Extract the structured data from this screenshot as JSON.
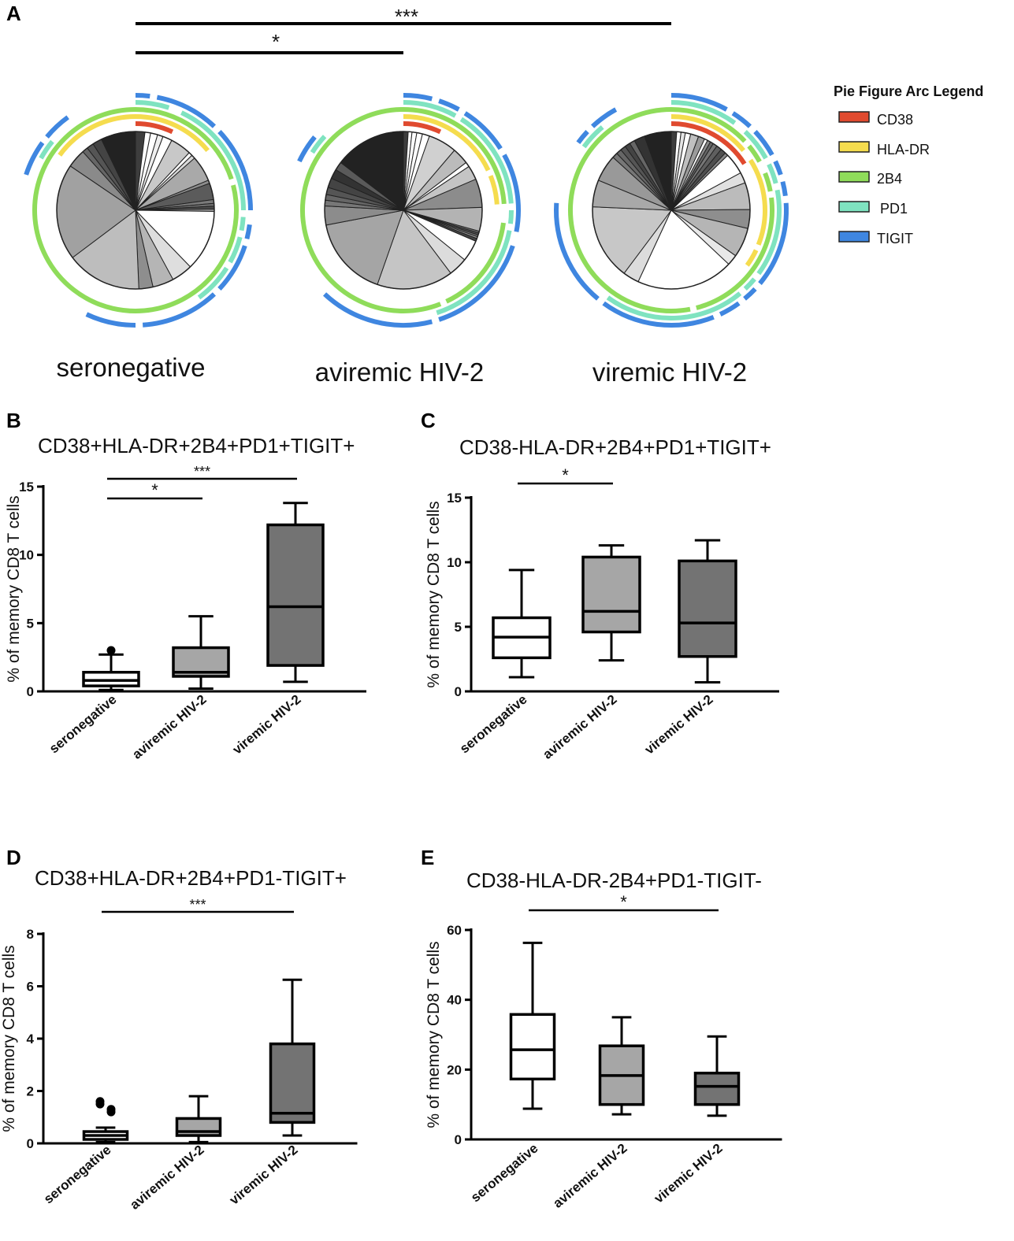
{
  "panel_a": {
    "label": "A",
    "groups": [
      "seronegative",
      "aviremic HIV-2",
      "viremic HIV-2"
    ],
    "significance": [
      {
        "from": 0,
        "to": 2,
        "text": "***"
      },
      {
        "from": 0,
        "to": 1,
        "text": "*"
      }
    ],
    "legend": {
      "title": "Pie Figure Arc Legend",
      "items": [
        {
          "label": "CD38",
          "color": "#e04a2f"
        },
        {
          "label": "HLA-DR",
          "color": "#f5dc4e"
        },
        {
          "label": "2B4",
          "color": "#8fdc5a"
        },
        {
          "label": "PD1",
          "color": "#7fe3c0"
        },
        {
          "label": "TIGIT",
          "color": "#3f86e0"
        }
      ]
    }
  },
  "chart_data": [
    {
      "type": "box",
      "panel": "B",
      "title": "CD38+HLA-DR+2B4+PD1+TIGIT+",
      "ylabel": "% of memory CD8 T cells",
      "ylim": [
        0,
        15
      ],
      "yticks": [
        0,
        5,
        10,
        15
      ],
      "categories": [
        "seronegative",
        "aviremic HIV-2",
        "viremic HIV-2"
      ],
      "boxes": [
        {
          "min": 0.1,
          "q1": 0.4,
          "median": 0.8,
          "q3": 1.4,
          "max": 2.7,
          "fill": "#ffffff",
          "outliers": [
            3.0
          ]
        },
        {
          "min": 0.2,
          "q1": 1.1,
          "median": 1.4,
          "q3": 3.2,
          "max": 5.5,
          "fill": "#a6a6a6",
          "outliers": []
        },
        {
          "min": 0.7,
          "q1": 1.9,
          "median": 6.2,
          "q3": 12.2,
          "max": 13.8,
          "fill": "#737373",
          "outliers": []
        }
      ],
      "significance": [
        {
          "from": 0,
          "to": 1,
          "text": "*"
        },
        {
          "from": 0,
          "to": 2,
          "text": "***"
        }
      ]
    },
    {
      "type": "box",
      "panel": "C",
      "title": "CD38-HLA-DR+2B4+PD1+TIGIT+",
      "ylabel": "% of memory CD8 T cells",
      "ylim": [
        0,
        15
      ],
      "yticks": [
        0,
        5,
        10,
        15
      ],
      "categories": [
        "seronegative",
        "aviremic HIV-2",
        "viremic HIV-2"
      ],
      "boxes": [
        {
          "min": 1.1,
          "q1": 2.6,
          "median": 4.2,
          "q3": 5.7,
          "max": 9.4,
          "fill": "#ffffff",
          "outliers": []
        },
        {
          "min": 2.4,
          "q1": 4.6,
          "median": 6.2,
          "q3": 10.4,
          "max": 11.3,
          "fill": "#a6a6a6",
          "outliers": []
        },
        {
          "min": 0.7,
          "q1": 2.7,
          "median": 5.3,
          "q3": 10.1,
          "max": 11.7,
          "fill": "#737373",
          "outliers": []
        }
      ],
      "significance": [
        {
          "from": 0,
          "to": 1,
          "text": "*"
        }
      ]
    },
    {
      "type": "box",
      "panel": "D",
      "title": "CD38+HLA-DR+2B4+PD1-TIGIT+",
      "ylabel": "% of memory CD8 T cells",
      "ylim": [
        0,
        8
      ],
      "yticks": [
        0,
        2,
        4,
        6,
        8
      ],
      "categories": [
        "seronegative",
        "aviremic HIV-2",
        "viremic HIV-2"
      ],
      "boxes": [
        {
          "min": 0.05,
          "q1": 0.15,
          "median": 0.3,
          "q3": 0.45,
          "max": 0.6,
          "fill": "#ffffff",
          "outliers": [
            1.5,
            1.2,
            1.6,
            1.3
          ]
        },
        {
          "min": 0.05,
          "q1": 0.3,
          "median": 0.45,
          "q3": 0.95,
          "max": 1.8,
          "fill": "#a6a6a6",
          "outliers": []
        },
        {
          "min": 0.3,
          "q1": 0.8,
          "median": 1.15,
          "q3": 3.8,
          "max": 6.25,
          "fill": "#737373",
          "outliers": []
        }
      ],
      "significance": [
        {
          "from": 0,
          "to": 2,
          "text": "***"
        }
      ]
    },
    {
      "type": "box",
      "panel": "E",
      "title": "CD38-HLA-DR-2B4+PD1-TIGIT-",
      "ylabel": "% of memory CD8 T cells",
      "ylim": [
        0,
        60
      ],
      "yticks": [
        0,
        20,
        40,
        60
      ],
      "categories": [
        "seronegative",
        "aviremic HIV-2",
        "viremic HIV-2"
      ],
      "boxes": [
        {
          "min": 8.8,
          "q1": 17.3,
          "median": 25.7,
          "q3": 35.8,
          "max": 56.3,
          "fill": "#ffffff",
          "outliers": []
        },
        {
          "min": 7.2,
          "q1": 10.0,
          "median": 18.3,
          "q3": 26.8,
          "max": 35.0,
          "fill": "#a6a6a6",
          "outliers": []
        },
        {
          "min": 6.8,
          "q1": 10.0,
          "median": 15.2,
          "q3": 19.0,
          "max": 29.5,
          "fill": "#737373",
          "outliers": []
        }
      ],
      "significance": [
        {
          "from": 0,
          "to": 2,
          "text": "*"
        }
      ]
    }
  ]
}
